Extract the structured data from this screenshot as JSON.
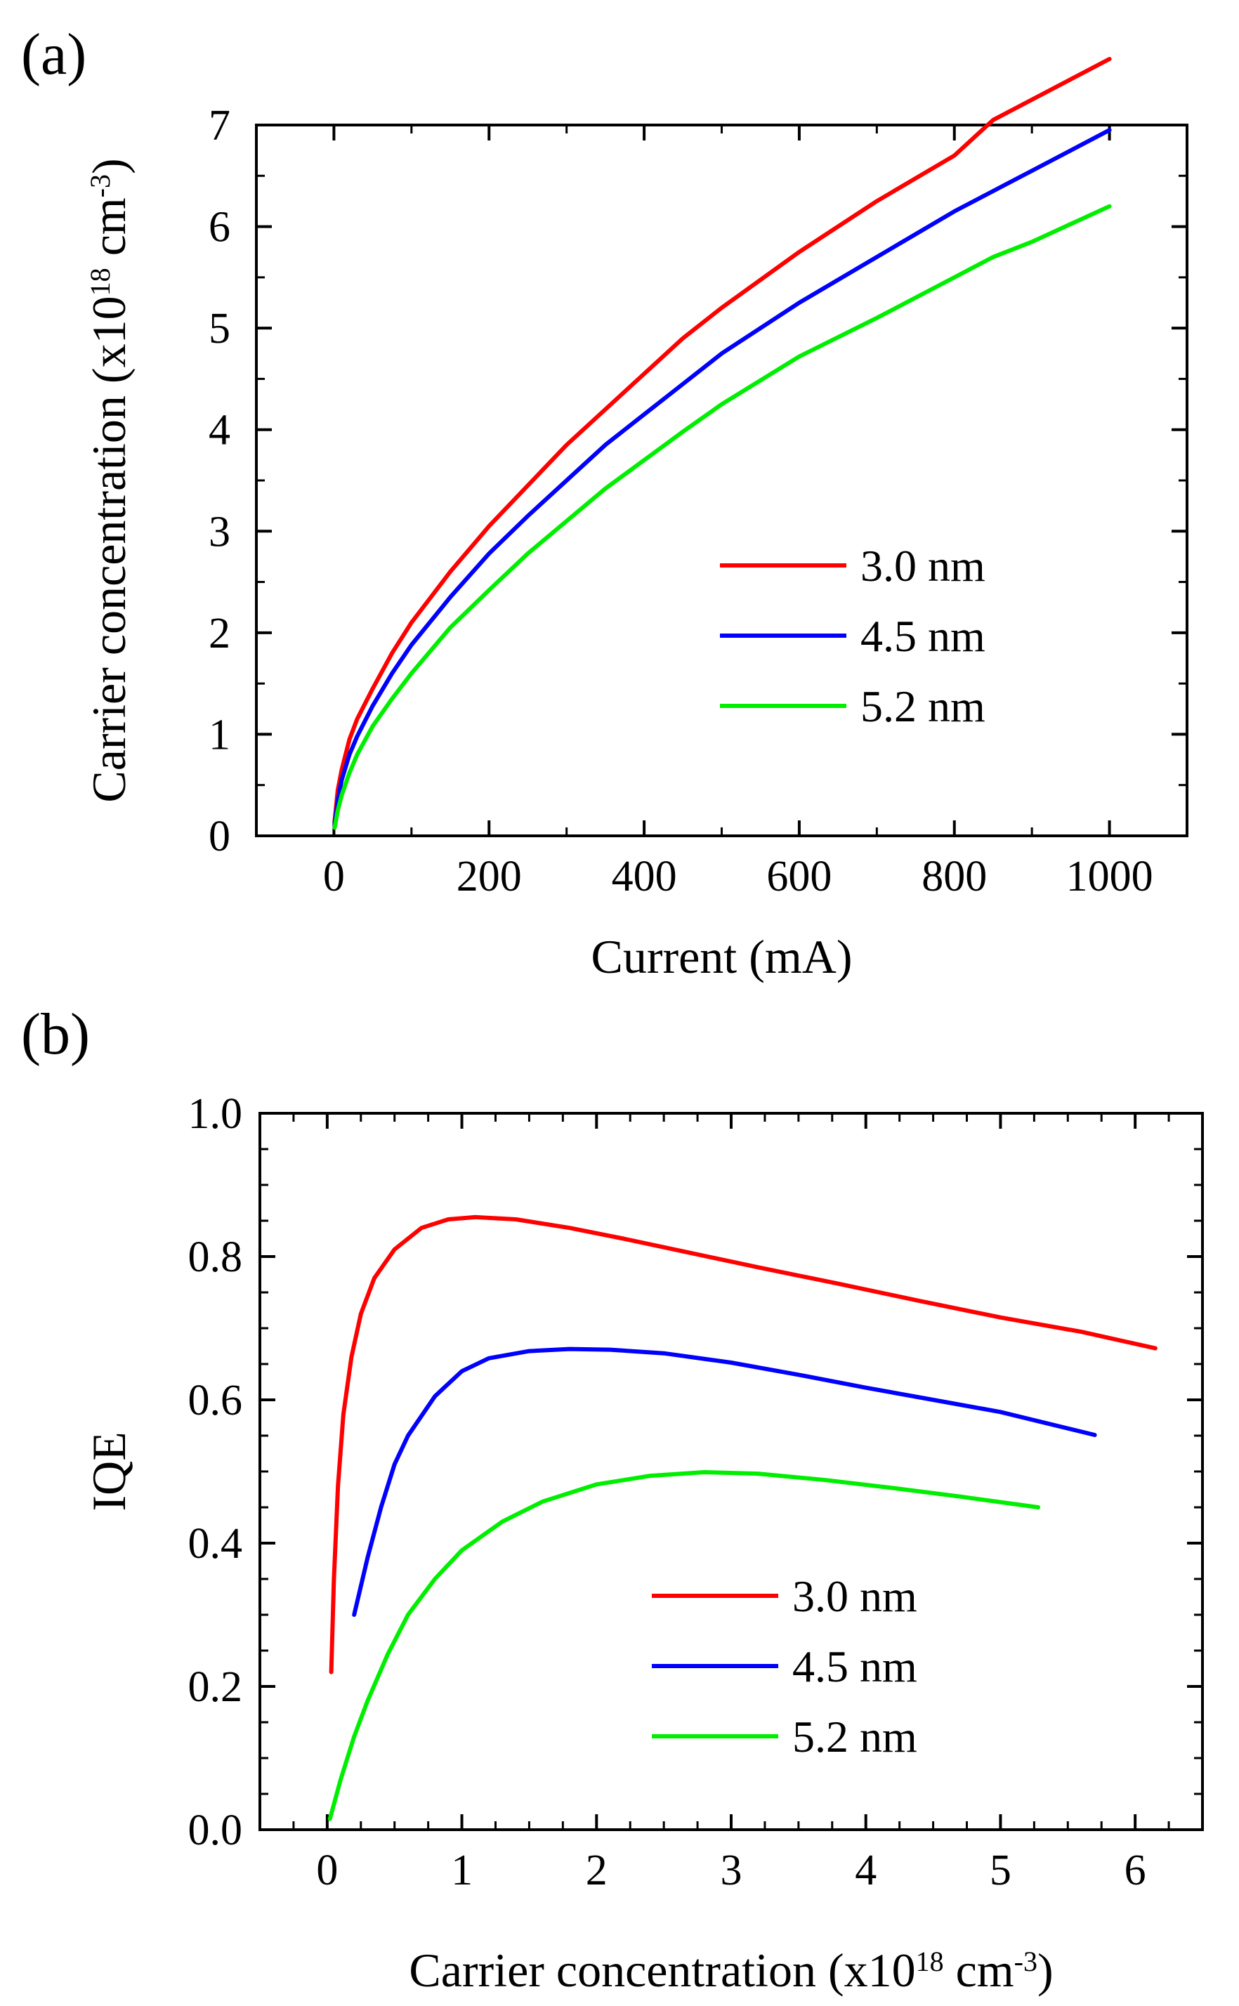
{
  "chart_data": [
    {
      "panel_label": "(a)",
      "type": "line",
      "xlabel": "Current (mA)",
      "ylabel": {
        "main": "Carrier concentration (x10",
        "exp": "18",
        "unit": " cm",
        "unit_exp": "-3",
        "close": ")"
      },
      "xlim": [
        -100,
        1100
      ],
      "ylim": [
        0,
        7
      ],
      "xticks": [
        "0",
        "200",
        "400",
        "600",
        "800",
        "1000"
      ],
      "xtick_values": [
        0,
        200,
        400,
        600,
        800,
        1000
      ],
      "yticks": [
        "0",
        "1",
        "2",
        "3",
        "4",
        "5",
        "6",
        "7"
      ],
      "ytick_values": [
        0,
        1,
        2,
        3,
        4,
        5,
        6,
        7
      ],
      "grid": false,
      "legend_position": "lower-right",
      "series": [
        {
          "name": "3.0 nm",
          "color": "#ff0000",
          "x": [
            1,
            5,
            10,
            20,
            30,
            50,
            75,
            100,
            150,
            200,
            250,
            300,
            350,
            400,
            450,
            500,
            600,
            700,
            800,
            850,
            900,
            1000
          ],
          "y": [
            0.15,
            0.45,
            0.65,
            0.95,
            1.15,
            1.45,
            1.8,
            2.1,
            2.6,
            3.05,
            3.45,
            3.85,
            4.2,
            4.55,
            4.9,
            5.2,
            5.75,
            6.25,
            6.7,
            7.05,
            7.25,
            7.65
          ]
        },
        {
          "name": "4.5 nm",
          "color": "#0000ff",
          "x": [
            1,
            5,
            10,
            20,
            30,
            50,
            75,
            100,
            150,
            200,
            250,
            300,
            350,
            400,
            450,
            500,
            600,
            700,
            800,
            850,
            900,
            1000
          ],
          "y": [
            0.12,
            0.35,
            0.55,
            0.8,
            0.98,
            1.28,
            1.6,
            1.88,
            2.35,
            2.78,
            3.15,
            3.5,
            3.85,
            4.15,
            4.45,
            4.75,
            5.25,
            5.7,
            6.15,
            6.35,
            6.55,
            6.95
          ]
        },
        {
          "name": "5.2 nm",
          "color": "#00ee00",
          "x": [
            1,
            5,
            10,
            20,
            30,
            50,
            75,
            100,
            150,
            200,
            250,
            300,
            350,
            400,
            450,
            500,
            600,
            700,
            800,
            850,
            900,
            1000
          ],
          "y": [
            0.08,
            0.25,
            0.4,
            0.62,
            0.8,
            1.08,
            1.35,
            1.6,
            2.05,
            2.42,
            2.78,
            3.1,
            3.42,
            3.7,
            3.98,
            4.25,
            4.72,
            5.1,
            5.5,
            5.7,
            5.85,
            6.2
          ]
        }
      ]
    },
    {
      "panel_label": "(b)",
      "type": "line",
      "xlabel": {
        "main": "Carrier concentration (x10",
        "exp": "18",
        "unit": " cm",
        "unit_exp": "-3",
        "close": ")"
      },
      "ylabel": "IQE",
      "xlim": [
        -0.5,
        6.5
      ],
      "ylim": [
        0.0,
        1.0
      ],
      "xticks": [
        "0",
        "1",
        "2",
        "3",
        "4",
        "5",
        "6"
      ],
      "xtick_values": [
        0,
        1,
        2,
        3,
        4,
        5,
        6
      ],
      "yticks": [
        "0.0",
        "0.2",
        "0.4",
        "0.6",
        "0.8",
        "1.0"
      ],
      "ytick_values": [
        0.0,
        0.2,
        0.4,
        0.6,
        0.8,
        1.0
      ],
      "grid": false,
      "legend_position": "lower-right",
      "series": [
        {
          "name": "3.0 nm",
          "color": "#ff0000",
          "x": [
            0.03,
            0.05,
            0.08,
            0.12,
            0.18,
            0.25,
            0.35,
            0.5,
            0.7,
            0.9,
            1.1,
            1.4,
            1.8,
            2.2,
            2.7,
            3.2,
            3.8,
            4.4,
            5.0,
            5.6,
            6.15
          ],
          "y": [
            0.22,
            0.35,
            0.48,
            0.58,
            0.66,
            0.72,
            0.77,
            0.81,
            0.84,
            0.852,
            0.855,
            0.852,
            0.84,
            0.825,
            0.805,
            0.785,
            0.762,
            0.738,
            0.715,
            0.695,
            0.672
          ]
        },
        {
          "name": "4.5 nm",
          "color": "#0000ff",
          "x": [
            0.2,
            0.3,
            0.4,
            0.5,
            0.6,
            0.8,
            1.0,
            1.2,
            1.5,
            1.8,
            2.1,
            2.5,
            3.0,
            3.5,
            4.0,
            4.5,
            5.0,
            5.7
          ],
          "y": [
            0.3,
            0.38,
            0.45,
            0.51,
            0.55,
            0.605,
            0.64,
            0.658,
            0.668,
            0.671,
            0.67,
            0.665,
            0.652,
            0.635,
            0.617,
            0.6,
            0.583,
            0.551
          ]
        },
        {
          "name": "5.2 nm",
          "color": "#00ee00",
          "x": [
            0.02,
            0.1,
            0.2,
            0.3,
            0.45,
            0.6,
            0.8,
            1.0,
            1.3,
            1.6,
            2.0,
            2.4,
            2.8,
            3.2,
            3.7,
            4.2,
            4.7,
            5.28
          ],
          "y": [
            0.015,
            0.07,
            0.13,
            0.18,
            0.245,
            0.3,
            0.35,
            0.39,
            0.43,
            0.458,
            0.482,
            0.494,
            0.499,
            0.497,
            0.488,
            0.477,
            0.465,
            0.45
          ]
        }
      ]
    }
  ]
}
